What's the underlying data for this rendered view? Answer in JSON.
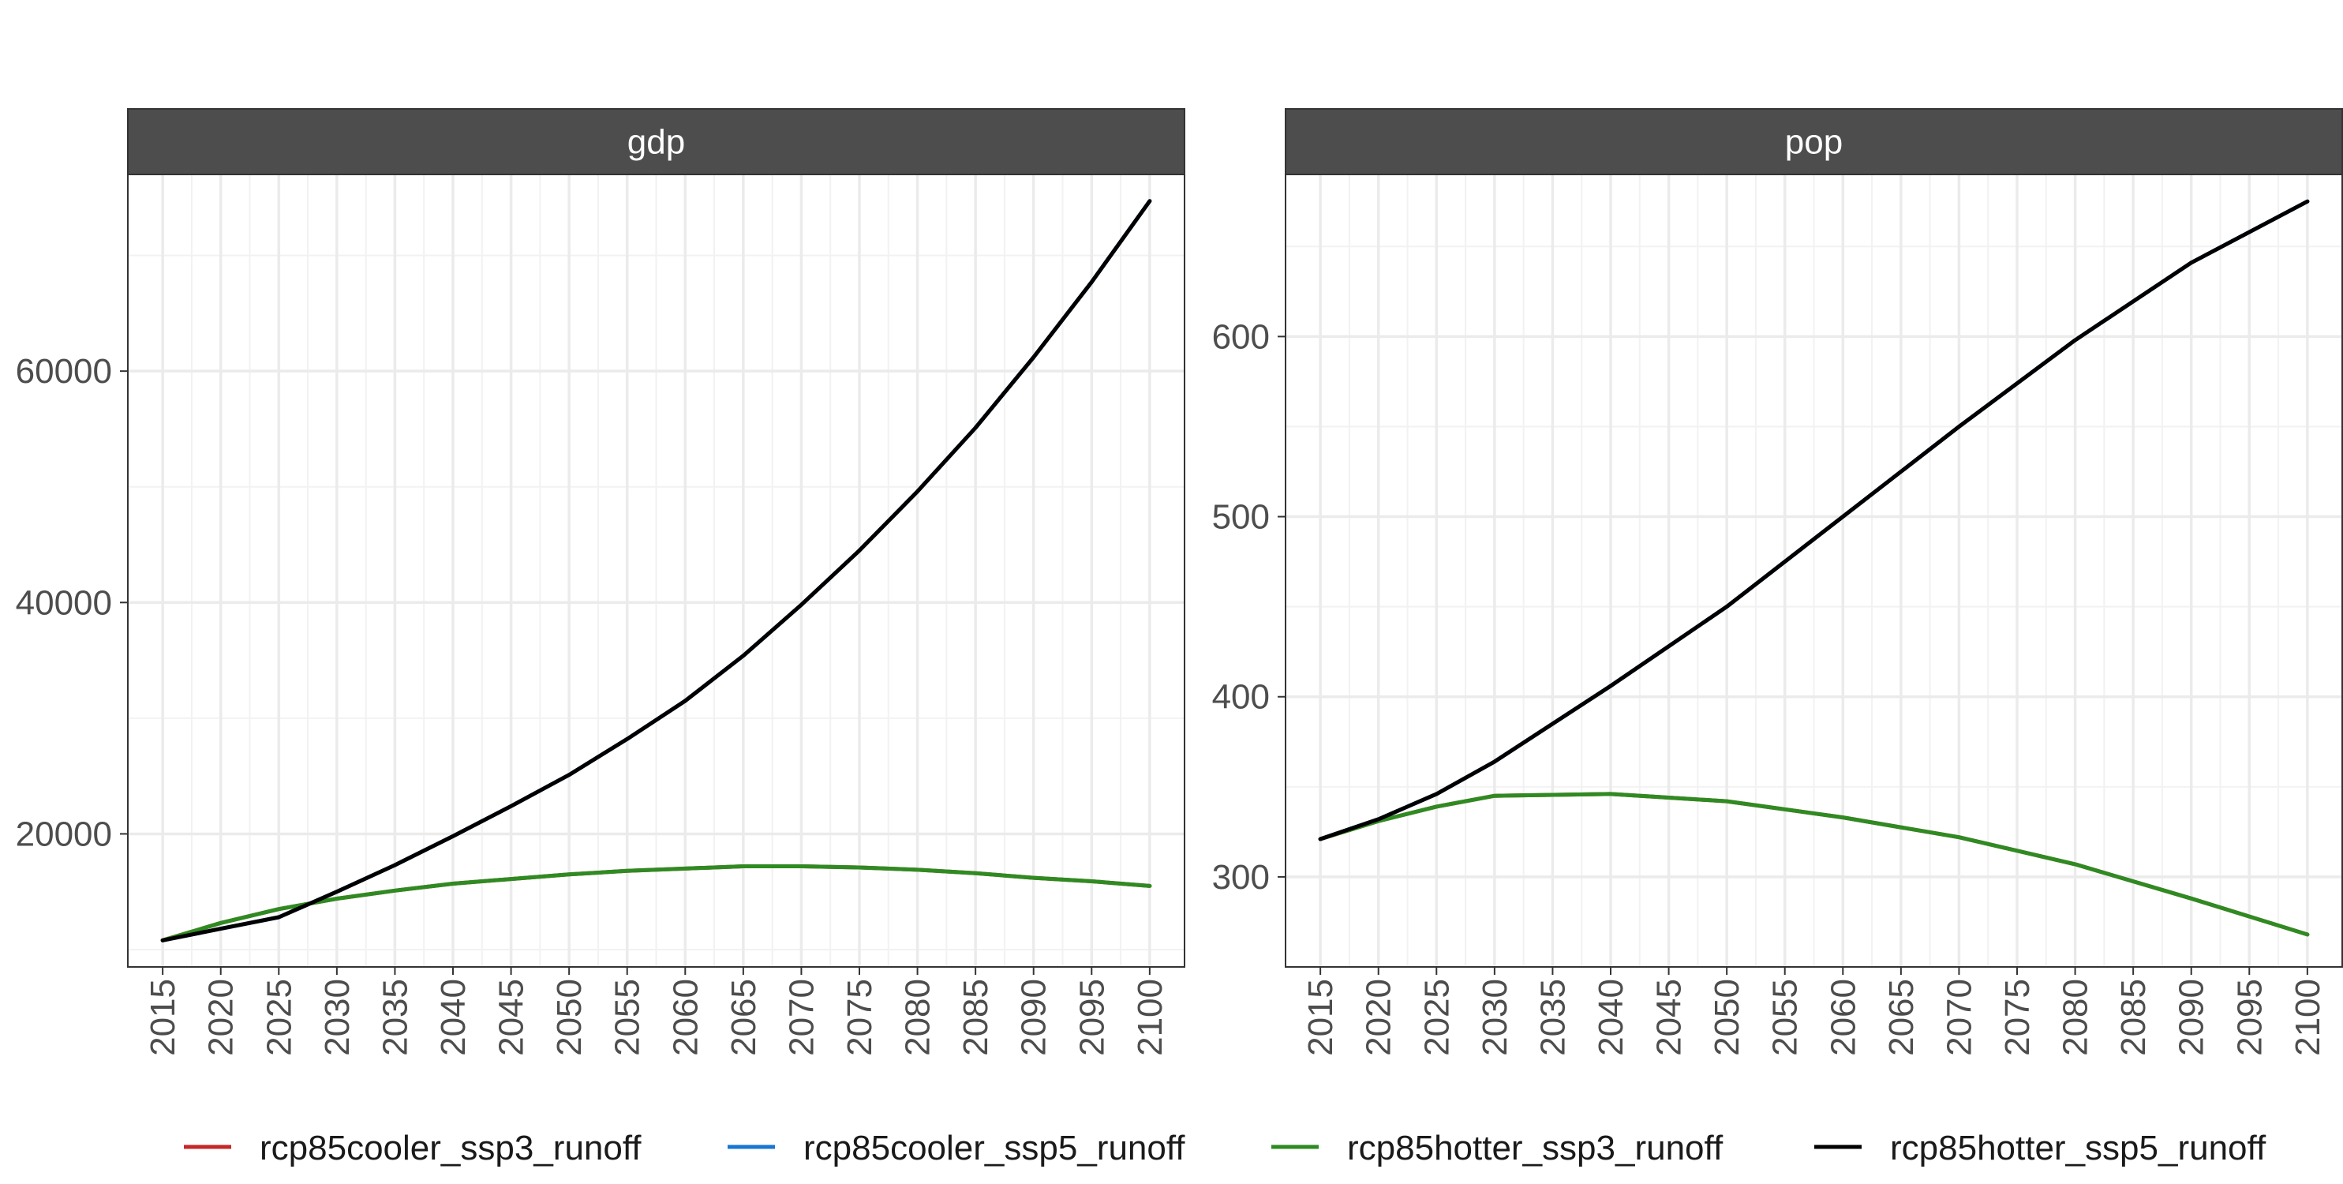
{
  "chart_data": {
    "type": "line",
    "facets": [
      {
        "label": "gdp",
        "ylim": [
          8500,
          77000
        ],
        "yticks": [
          20000,
          40000,
          60000
        ],
        "series": [
          {
            "name": "rcp85cooler_ssp3_runoff",
            "color": "#c62828",
            "x": [
              2015,
              2020,
              2025,
              2030,
              2035,
              2040,
              2045,
              2050,
              2055,
              2060,
              2065,
              2070,
              2075,
              2080,
              2085,
              2090,
              2095,
              2100
            ],
            "values": [
              10800,
              12300,
              13500,
              14400,
              15100,
              15700,
              16100,
              16500,
              16800,
              17000,
              17200,
              17200,
              17100,
              16900,
              16600,
              16200,
              15900,
              15500
            ]
          },
          {
            "name": "rcp85cooler_ssp5_runoff",
            "color": "#1976d2",
            "x": [
              2015,
              2020,
              2025,
              2030,
              2035,
              2040,
              2045,
              2050,
              2055,
              2060,
              2065,
              2070,
              2075,
              2080,
              2085,
              2090,
              2095,
              2100
            ],
            "values": [
              10800,
              11800,
              12800,
              15000,
              17300,
              19800,
              22400,
              25100,
              28200,
              31500,
              35400,
              39800,
              44500,
              49600,
              55100,
              61200,
              67700,
              74700
            ]
          },
          {
            "name": "rcp85hotter_ssp3_runoff",
            "color": "#2e8b22",
            "x": [
              2015,
              2020,
              2025,
              2030,
              2035,
              2040,
              2045,
              2050,
              2055,
              2060,
              2065,
              2070,
              2075,
              2080,
              2085,
              2090,
              2095,
              2100
            ],
            "values": [
              10800,
              12300,
              13500,
              14400,
              15100,
              15700,
              16100,
              16500,
              16800,
              17000,
              17200,
              17200,
              17100,
              16900,
              16600,
              16200,
              15900,
              15500
            ]
          },
          {
            "name": "rcp85hotter_ssp5_runoff",
            "color": "#000000",
            "x": [
              2015,
              2020,
              2025,
              2030,
              2035,
              2040,
              2045,
              2050,
              2055,
              2060,
              2065,
              2070,
              2075,
              2080,
              2085,
              2090,
              2095,
              2100
            ],
            "values": [
              10800,
              11800,
              12800,
              15000,
              17300,
              19800,
              22400,
              25100,
              28200,
              31500,
              35400,
              39800,
              44500,
              49600,
              55100,
              61200,
              67700,
              74700
            ]
          }
        ]
      },
      {
        "label": "pop",
        "ylim": [
          250,
          690
        ],
        "yticks": [
          300,
          400,
          500,
          600
        ],
        "series": [
          {
            "name": "rcp85cooler_ssp3_runoff",
            "color": "#c62828",
            "x": [
              2015,
              2020,
              2025,
              2030,
              2040,
              2050,
              2060,
              2070,
              2080,
              2090,
              2100
            ],
            "values": [
              321,
              331,
              339,
              345,
              346,
              342,
              333,
              322,
              307,
              288,
              268
            ]
          },
          {
            "name": "rcp85cooler_ssp5_runoff",
            "color": "#1976d2",
            "x": [
              2015,
              2020,
              2025,
              2030,
              2040,
              2050,
              2060,
              2070,
              2080,
              2090,
              2100
            ],
            "values": [
              321,
              332,
              346,
              364,
              406,
              450,
              500,
              550,
              598,
              641,
              675
            ]
          },
          {
            "name": "rcp85hotter_ssp3_runoff",
            "color": "#2e8b22",
            "x": [
              2015,
              2020,
              2025,
              2030,
              2040,
              2050,
              2060,
              2070,
              2080,
              2090,
              2100
            ],
            "values": [
              321,
              331,
              339,
              345,
              346,
              342,
              333,
              322,
              307,
              288,
              268
            ]
          },
          {
            "name": "rcp85hotter_ssp5_runoff",
            "color": "#000000",
            "x": [
              2015,
              2020,
              2025,
              2030,
              2040,
              2050,
              2060,
              2070,
              2080,
              2090,
              2100
            ],
            "values": [
              321,
              332,
              346,
              364,
              406,
              450,
              500,
              550,
              598,
              641,
              675
            ]
          }
        ]
      }
    ],
    "x_ticks": [
      2015,
      2020,
      2025,
      2030,
      2035,
      2040,
      2045,
      2050,
      2055,
      2060,
      2065,
      2070,
      2075,
      2080,
      2085,
      2090,
      2095,
      2100
    ],
    "xlim": [
      2012,
      2103
    ],
    "grid": true,
    "legend": {
      "position": "bottom",
      "entries": [
        {
          "label": "rcp85cooler_ssp3_runoff",
          "color": "#c62828"
        },
        {
          "label": "rcp85cooler_ssp5_runoff",
          "color": "#1976d2"
        },
        {
          "label": "rcp85hotter_ssp3_runoff",
          "color": "#2e8b22"
        },
        {
          "label": "rcp85hotter_ssp5_runoff",
          "color": "#000000"
        }
      ]
    }
  }
}
